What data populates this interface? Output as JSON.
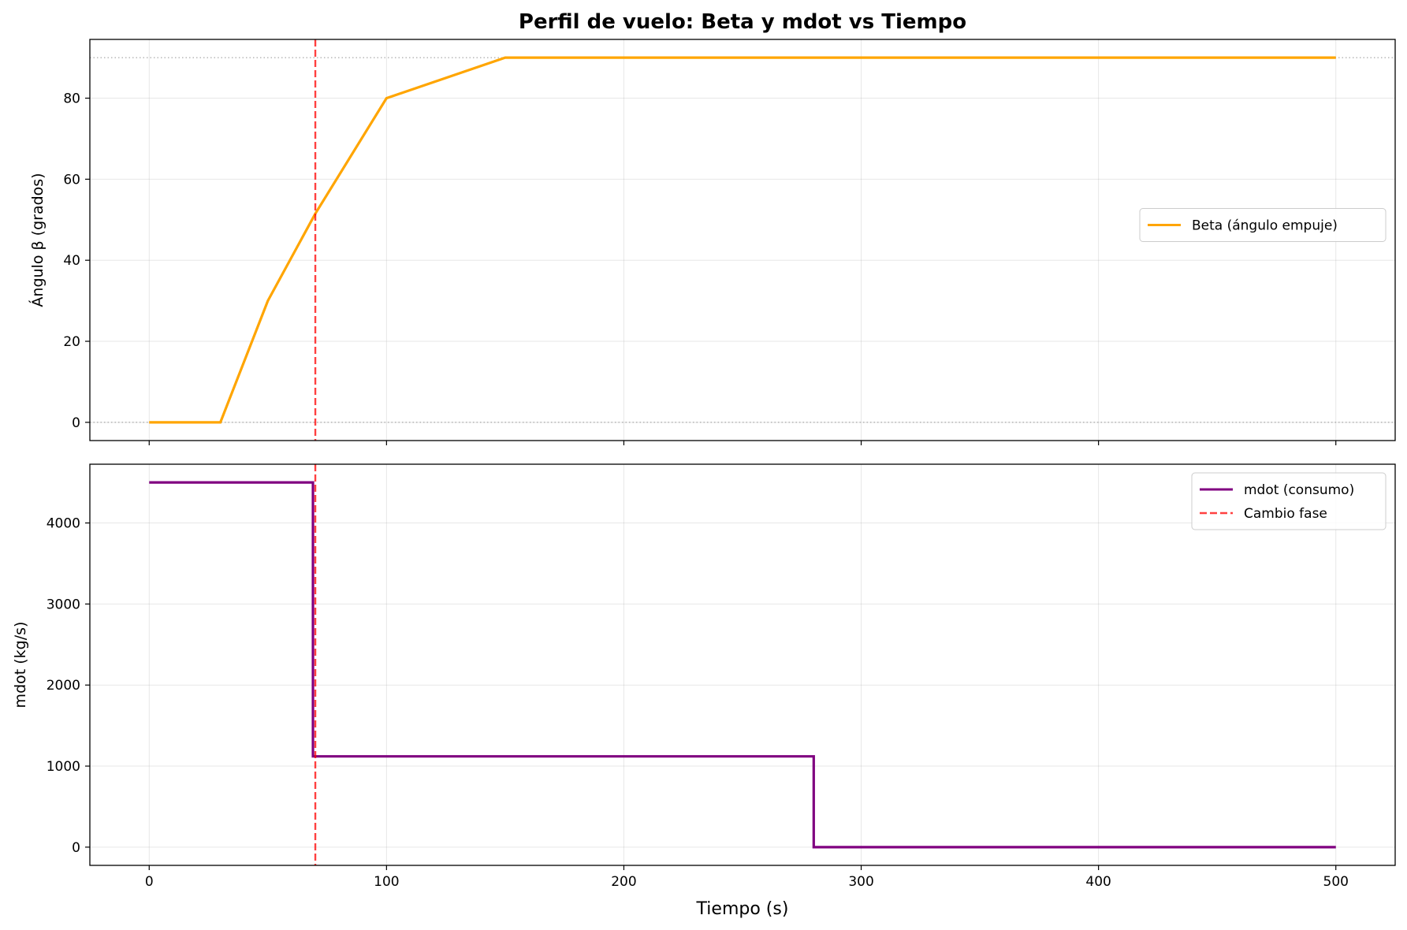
{
  "figure": {
    "title": "Perfil de vuelo: Beta y mdot vs Tiempo",
    "xlabel": "Tiempo (s)"
  },
  "chart_data": [
    {
      "type": "line",
      "title": "Perfil de vuelo: Beta y mdot vs Tiempo",
      "xlabel": "",
      "ylabel": "Ángulo β (grados)",
      "xlim": [
        -25,
        525
      ],
      "ylim": [
        -4.5,
        94.5
      ],
      "xticks": [
        0,
        100,
        200,
        300,
        400,
        500
      ],
      "yticks": [
        0,
        20,
        40,
        60,
        80
      ],
      "show_xtick_labels": false,
      "grid": true,
      "legend_position": "center-right",
      "reference_lines": [
        {
          "y": 0,
          "style": "dotted",
          "color": "#888888"
        },
        {
          "y": 90,
          "style": "dotted",
          "color": "#888888"
        }
      ],
      "vlines": [
        {
          "x": 70,
          "name": "Cambio fase",
          "style": "dashed",
          "color": "#ff0000"
        }
      ],
      "series": [
        {
          "name": "Beta (ángulo empuje)",
          "color": "#ffa500",
          "x": [
            0,
            30,
            50,
            70,
            100,
            150,
            500
          ],
          "y": [
            0,
            0,
            30,
            51.5,
            80,
            90,
            90
          ]
        }
      ]
    },
    {
      "type": "line",
      "xlabel": "Tiempo (s)",
      "ylabel": "mdot (kg/s)",
      "xlim": [
        -25,
        525
      ],
      "ylim": [
        -225,
        4725
      ],
      "xticks": [
        0,
        100,
        200,
        300,
        400,
        500
      ],
      "yticks": [
        0,
        1000,
        2000,
        3000,
        4000
      ],
      "show_xtick_labels": true,
      "grid": true,
      "legend_position": "upper-right",
      "vlines": [
        {
          "x": 70,
          "name": "Cambio fase",
          "style": "dashed",
          "color": "#ff0000"
        }
      ],
      "series": [
        {
          "name": "mdot (consumo)",
          "color": "#800080",
          "x": [
            0,
            69,
            69,
            280,
            280,
            500
          ],
          "y": [
            4500,
            4500,
            1120,
            1120,
            0,
            0
          ]
        }
      ]
    }
  ]
}
